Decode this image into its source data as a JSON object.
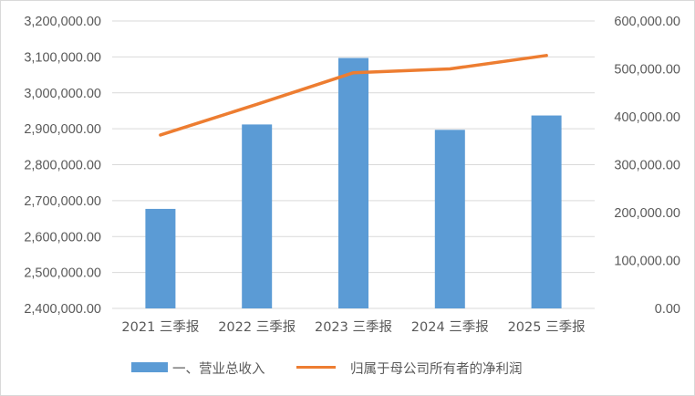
{
  "chart_data": {
    "type": "bar",
    "categories": [
      "2021 三季报",
      "2022 三季报",
      "2023 三季报",
      "2024 三季报",
      "2025 三季报"
    ],
    "series": [
      {
        "name": "一、营业总收入",
        "type": "bar",
        "axis": "left",
        "values": [
          2677000,
          2912000,
          3097000,
          2897000,
          2937000
        ],
        "color": "#5b9bd5"
      },
      {
        "name": "归属于母公司所有者的净利润",
        "type": "line",
        "axis": "right",
        "values": [
          362000,
          426000,
          492000,
          500000,
          528000
        ],
        "color": "#ed7d31"
      }
    ],
    "y_left": {
      "min": 2400000,
      "max": 3200000,
      "step": 100000,
      "tick_labels": [
        "2,400,000.00",
        "2,500,000.00",
        "2,600,000.00",
        "2,700,000.00",
        "2,800,000.00",
        "2,900,000.00",
        "3,000,000.00",
        "3,100,000.00",
        "3,200,000.00"
      ]
    },
    "y_right": {
      "min": 0,
      "max": 600000,
      "step": 100000,
      "tick_labels": [
        "0.00",
        "100,000.00",
        "200,000.00",
        "300,000.00",
        "400,000.00",
        "500,000.00",
        "600,000.00"
      ]
    },
    "grid": true,
    "legend_position": "bottom",
    "title": "",
    "xlabel": "",
    "ylabel": ""
  }
}
